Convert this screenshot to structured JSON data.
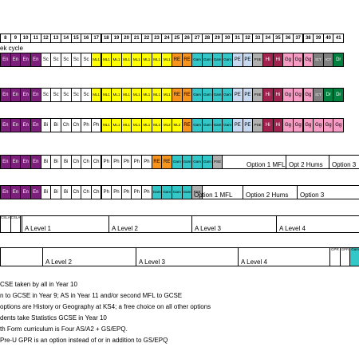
{
  "colors": {
    "En": "#7b1f7a",
    "Sc": "#ffffff",
    "ML1": "#ffff00",
    "ML2": "#ffff00",
    "RE": "#f7941d",
    "Gam": "#33c7c7",
    "PE": "#c6d9f1",
    "PSE": "#b0b0b0",
    "Hi": "#a0234f",
    "Gg": "#f59bc4",
    "ICT": "#7f7f7f",
    "Dr": "#007f3e",
    "Bi": "#ffffff",
    "Ch": "#ffffff",
    "Ph": "#ffffff"
  },
  "header": {
    "periods": [
      "8",
      "9",
      "10",
      "11",
      "12",
      "13",
      "14",
      "15",
      "16",
      "17",
      "18",
      "19",
      "20",
      "21",
      "22",
      "23",
      "24",
      "25",
      "26",
      "27",
      "28",
      "29",
      "30",
      "31",
      "32",
      "33",
      "34",
      "35",
      "36",
      "37",
      "38",
      "39",
      "40",
      "41"
    ],
    "cycle_label": "ek cycle"
  },
  "rows": [
    {
      "cells": [
        "En",
        "En",
        "En",
        "En",
        "Sc",
        "Sc",
        "Sc",
        "Sc",
        "Sc",
        "ML1",
        "ML1",
        "ML1",
        "ML1",
        "ML1",
        "ML1",
        "ML1",
        "ML1",
        "RE",
        "RE",
        "Gam",
        "Gam",
        "Gam",
        "Gam",
        "PE",
        "PE",
        "PSE",
        "Hi",
        "Hi",
        "Gg",
        "Gg",
        "Gg",
        "ICT",
        "ICT",
        "Dr"
      ]
    },
    {
      "cells": [
        "En",
        "En",
        "En",
        "En",
        "Sc",
        "Sc",
        "Sc",
        "Sc",
        "Sc",
        "ML1",
        "ML1",
        "ML1",
        "ML1",
        "ML1",
        "ML1",
        "ML1",
        "ML1",
        "RE",
        "RE",
        "Gam",
        "Gam",
        "Gam",
        "Gam",
        "PE",
        "PE",
        "PSE",
        "Hi",
        "Hi",
        "Gg",
        "Gg",
        "Gg",
        "ICT",
        "Dr",
        "Dr"
      ]
    },
    {
      "cells": [
        "En",
        "En",
        "En",
        "En",
        "Bi",
        "Bi",
        "Ch",
        "Ch",
        "Ph",
        "Ph",
        "ML1",
        "ML1",
        "ML1",
        "ML1",
        "ML1",
        "ML2",
        "ML2",
        "ML2",
        "RE",
        "Gam",
        "Gam",
        "Gam",
        "Gam",
        "PE",
        "PE",
        "PSE",
        "Hi",
        "Hi",
        "Gg",
        "Gg",
        "Gg",
        "Gg",
        "Gg",
        "Gg"
      ]
    }
  ],
  "row4": {
    "cells": [
      "En",
      "En",
      "En",
      "En",
      "Bi",
      "Bi",
      "Bi",
      "Ch",
      "Ch",
      "Ch",
      "Ph",
      "Ph",
      "Ph",
      "Ph",
      "Ph",
      "RE",
      "RE",
      "Gam",
      "Gam",
      "Gam",
      "Gam",
      "PSE"
    ],
    "options": [
      "Option 1 MFL",
      "Opt 2 Hums",
      "Option 3"
    ]
  },
  "row5": {
    "cells": [
      "En",
      "En",
      "En",
      "En",
      "Bi",
      "Bi",
      "Bi",
      "Ch",
      "Ch",
      "Ch",
      "Ph",
      "Ph",
      "Ph",
      "Ph",
      "Ph",
      "Gam",
      "Gam",
      "Gam",
      "Gam",
      "PSE"
    ],
    "options": [
      "Option 1 MFL",
      "Option 2 Hums",
      "Option 3"
    ]
  },
  "row6": {
    "cells": [
      "CSLA",
      "CSLA"
    ],
    "options": [
      "A Level 1",
      "A Level 2",
      "A Level 3",
      "A Level 4"
    ]
  },
  "row7": {
    "options": [
      "A Level 2",
      "A Level 3",
      "A Level 4"
    ],
    "tail": [
      "GPR",
      "GPR",
      "Gam"
    ]
  },
  "notes": [
    "CSE taken by all in Year 10",
    "n to GCSE in Year 9; AS in Year 11 and/or second MFL to GCSE",
    " options are History or Geography at KS4; a free choice on all other options",
    "dents take Statistics GCSE in Year 10",
    "th Form curriculum is Four AS/A2 + GS/EPQ.",
    " Pre-U GPR is an option instead of or in addition to GS/EPQ"
  ]
}
